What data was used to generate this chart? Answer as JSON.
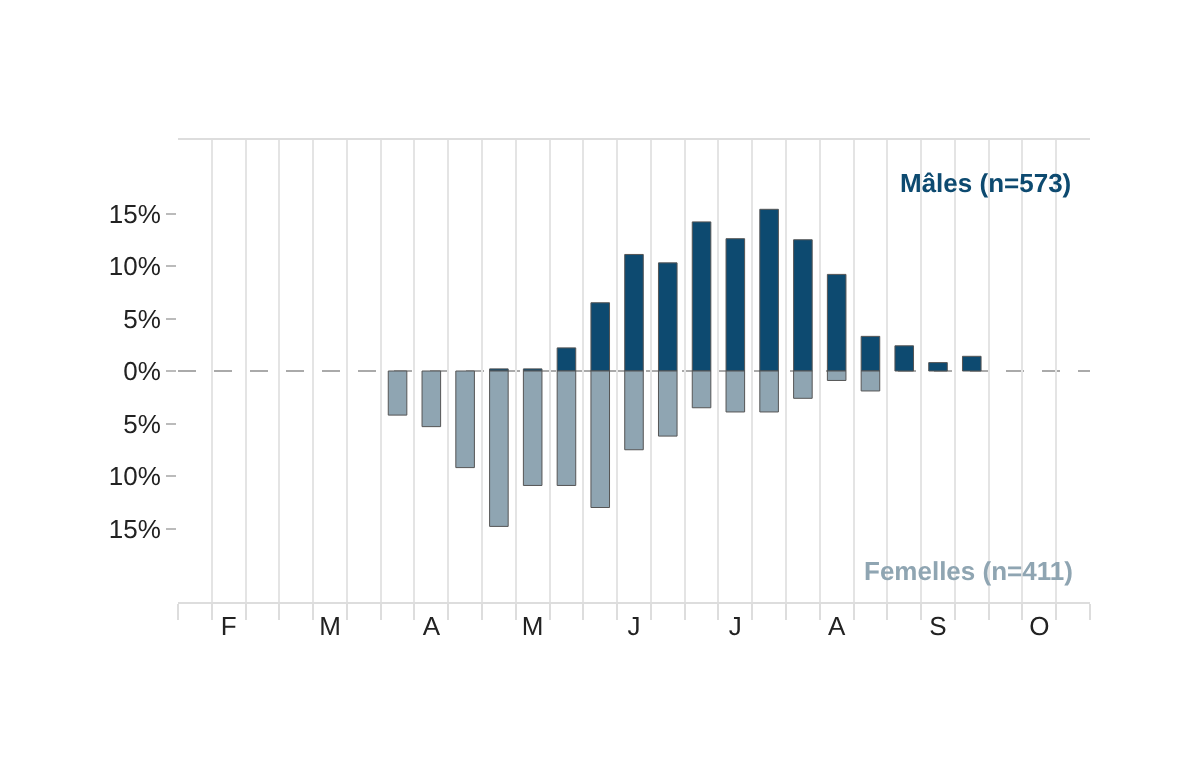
{
  "chart_data": {
    "type": "bar",
    "categories": [
      null,
      "F",
      null,
      null,
      "M",
      null,
      null,
      "A",
      null,
      null,
      "M",
      null,
      null,
      "J",
      null,
      null,
      "J",
      null,
      null,
      "A",
      null,
      null,
      "S",
      null,
      null,
      "O",
      null
    ],
    "series": [
      {
        "name": "Mâles (n=573)",
        "color": "#0d4a70",
        "values": [
          null,
          null,
          null,
          null,
          null,
          null,
          null,
          null,
          null,
          0.2,
          0.2,
          2.2,
          6.5,
          11.1,
          10.3,
          14.2,
          12.6,
          15.4,
          12.5,
          9.2,
          3.3,
          2.4,
          0.8,
          1.4,
          null,
          null,
          null
        ]
      },
      {
        "name": "Femelles (n=411)",
        "color": "#8fa5b2",
        "values": [
          null,
          null,
          null,
          null,
          null,
          null,
          -4.2,
          -5.3,
          -9.2,
          -14.8,
          -10.9,
          -10.9,
          -13.0,
          -7.5,
          -6.2,
          -3.5,
          -3.9,
          -3.9,
          -2.6,
          -0.9,
          -1.9,
          null,
          null,
          null,
          null,
          null,
          null
        ]
      }
    ],
    "ylim": [
      -22,
      22
    ],
    "yticks": [
      {
        "value": 15,
        "label": "15%"
      },
      {
        "value": 10,
        "label": "10%"
      },
      {
        "value": 5,
        "label": "5%"
      },
      {
        "value": 0,
        "label": "0%"
      },
      {
        "value": -5,
        "label": "5%"
      },
      {
        "value": -10,
        "label": "10%"
      },
      {
        "value": -15,
        "label": "15%"
      }
    ],
    "ref_lines": [
      {
        "axis": "y",
        "value": 0,
        "color": "#aaaaaa",
        "line_style": "dashed"
      }
    ],
    "grid": "x",
    "legend": false
  }
}
